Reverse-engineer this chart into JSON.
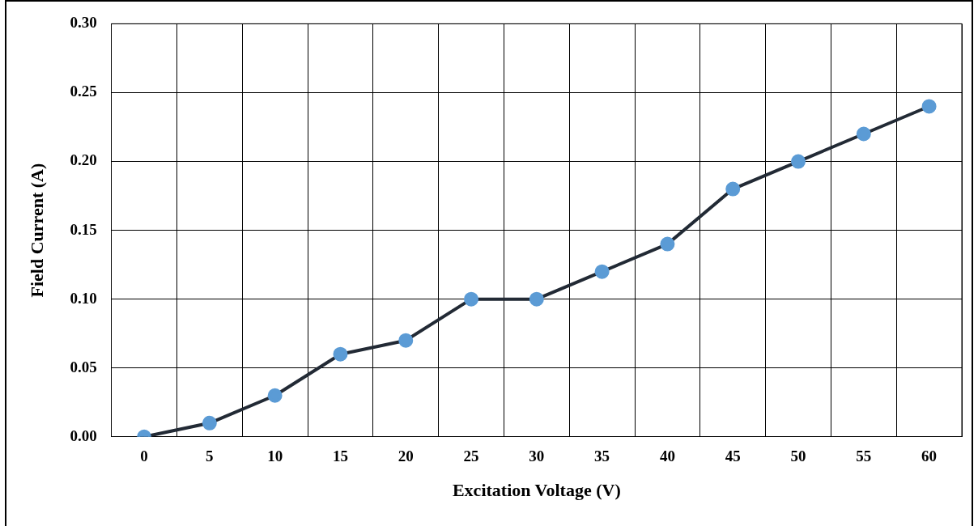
{
  "chart_data": {
    "type": "line",
    "xlabel": "Excitation Voltage (V)",
    "ylabel": "Field Current (A)",
    "categories": [
      "0",
      "5",
      "10",
      "15",
      "20",
      "25",
      "30",
      "35",
      "40",
      "45",
      "50",
      "55",
      "60"
    ],
    "series": [
      {
        "color": "#222a35",
        "colors": [
          "#5b9bd5",
          "#5b9bd5",
          "#5b9bd5",
          "#5b9bd5",
          "#5b9bd5",
          "#5b9bd5",
          "#5b9bd5",
          "#5b9bd5",
          "#5b9bd5",
          "#5b9bd5",
          "#5b9bd5",
          "#5b9bd5",
          "#5b9bd5"
        ],
        "values": [
          0,
          0.01,
          0.03,
          0.06,
          0.07,
          0.1,
          0.1,
          0.12,
          0.14,
          0.18,
          0.2,
          0.22,
          0.24
        ]
      }
    ],
    "ylim": [
      0,
      0.3
    ],
    "yticks": [
      {
        "value": 0,
        "label": "0.00"
      },
      {
        "value": 0.05,
        "label": "0.05"
      },
      {
        "value": 0.1,
        "label": "0.10"
      },
      {
        "value": 0.15,
        "label": "0.15"
      },
      {
        "value": 0.2,
        "label": "0.20"
      },
      {
        "value": 0.25,
        "label": "0.25"
      },
      {
        "value": 0.3,
        "label": "0.30"
      }
    ],
    "grid": true,
    "marker": "circle",
    "line_style": "solid"
  }
}
